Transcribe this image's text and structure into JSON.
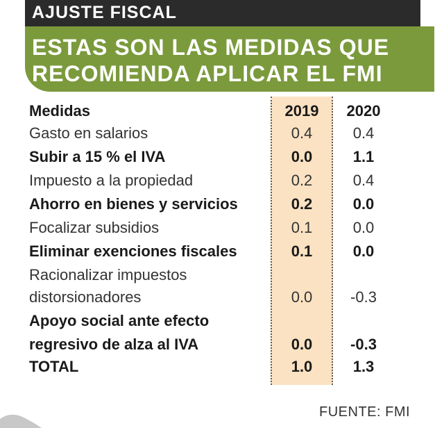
{
  "kicker": "AJUSTE FISCAL",
  "title_line1": "ESTAS SON LAS MEDIDAS QUE",
  "title_line2": "RECOMIENDA APLICAR EL FMI",
  "source": "FUENTE: FMI",
  "colors": {
    "accent_green": "#7b9a3c",
    "kicker_bg": "#2b2b2b",
    "highlight_2019": "#fbe2c2"
  },
  "chart_data": {
    "type": "table",
    "columns": [
      "Medidas",
      "2019",
      "2020"
    ],
    "rows": [
      {
        "label": "Gasto en salarios",
        "v2019": "0.4",
        "v2020": "0.4"
      },
      {
        "label": "Subir a 15 % el IVA",
        "v2019": "0.0",
        "v2020": "1.1"
      },
      {
        "label": "Impuesto a la propiedad",
        "v2019": "0.2",
        "v2020": "0.4"
      },
      {
        "label": "Ahorro en bienes y servicios",
        "v2019": "0.2",
        "v2020": "0.0"
      },
      {
        "label": "Focalizar subsidios",
        "v2019": "0.1",
        "v2020": "0.0"
      },
      {
        "label": "Eliminar exenciones fiscales",
        "v2019": "0.1",
        "v2020": "0.0"
      },
      {
        "label_line1": "Racionalizar impuestos",
        "label_line2": "distorsionadores",
        "v2019": "0.0",
        "v2020": "-0.3"
      },
      {
        "label_line1": "Apoyo social ante efecto",
        "label_line2": "regresivo de alza al IVA",
        "v2019": "0.0",
        "v2020": "-0.3"
      },
      {
        "label": "TOTAL",
        "v2019": "1.0",
        "v2020": "1.3"
      }
    ]
  }
}
